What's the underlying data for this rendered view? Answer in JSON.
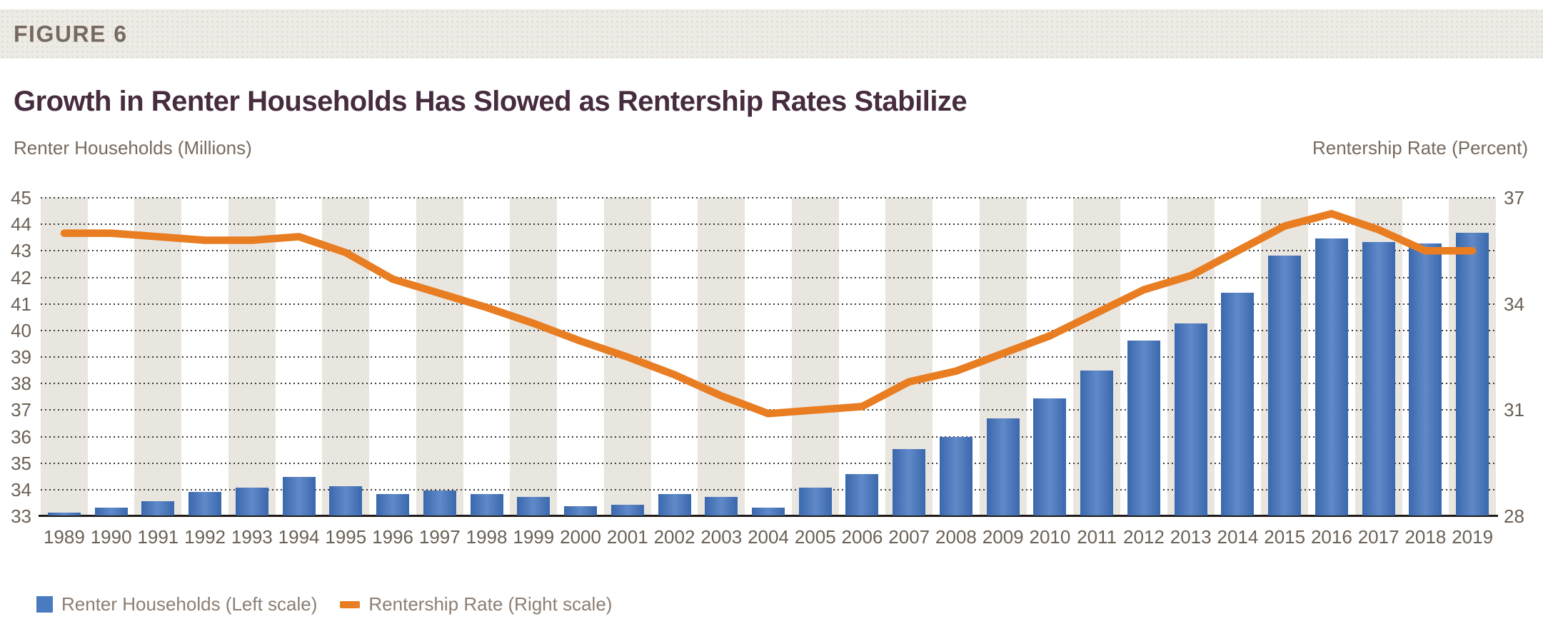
{
  "figure": {
    "label": "FIGURE 6",
    "title": "Growth in Renter Households Has Slowed as Rentership Rates Stabilize"
  },
  "chart_data": {
    "type": "bar+line combo",
    "left_axis_title": "Renter Households (Millions)",
    "right_axis_title": "Rentership Rate (Percent)",
    "left_axis": {
      "min": 33,
      "max": 45,
      "ticks": [
        45,
        44,
        43,
        42,
        41,
        40,
        39,
        38,
        37,
        36,
        35,
        34,
        33
      ]
    },
    "right_axis": {
      "min": 28,
      "max": 37,
      "ticks": [
        37,
        34,
        31,
        28
      ]
    },
    "categories": [
      "1989",
      "1990",
      "1991",
      "1992",
      "1993",
      "1994",
      "1995",
      "1996",
      "1997",
      "1998",
      "1999",
      "2000",
      "2001",
      "2002",
      "2003",
      "2004",
      "2005",
      "2006",
      "2007",
      "2008",
      "2009",
      "2010",
      "2011",
      "2012",
      "2013",
      "2014",
      "2015",
      "2016",
      "2017",
      "2018",
      "2019"
    ],
    "series": [
      {
        "name": "Renter Households (Left scale)",
        "type": "bar",
        "axis": "left",
        "color": "#4a7bbe",
        "values": [
          33.1,
          33.3,
          33.55,
          33.9,
          34.05,
          34.45,
          34.1,
          33.8,
          33.95,
          33.8,
          33.7,
          33.35,
          33.4,
          33.8,
          33.7,
          33.3,
          34.05,
          34.55,
          35.5,
          35.95,
          36.65,
          37.4,
          38.45,
          39.6,
          40.25,
          41.4,
          42.8,
          43.45,
          43.3,
          43.25,
          43.65
        ]
      },
      {
        "name": "Rentership Rate (Right scale)",
        "type": "line",
        "axis": "right",
        "color": "#e87d22",
        "values": [
          36.0,
          36.0,
          35.9,
          35.8,
          35.8,
          35.9,
          35.45,
          34.7,
          34.3,
          33.9,
          33.45,
          32.95,
          32.5,
          32.0,
          31.4,
          30.9,
          31.0,
          31.1,
          31.8,
          32.1,
          32.6,
          33.1,
          33.75,
          34.4,
          34.8,
          35.5,
          36.2,
          36.55,
          36.1,
          35.5,
          35.5
        ]
      }
    ],
    "grid": "dotted horizontal lines at each left-axis unit",
    "background_bands": "alternating vertical beige bands on odd years",
    "legend_position": "bottom-left"
  },
  "legend": {
    "items": [
      {
        "label": "Renter Households (Left scale)",
        "swatch": "blue-square"
      },
      {
        "label": "Rentership Rate (Right scale)",
        "swatch": "orange-dash"
      }
    ]
  },
  "colors": {
    "bar_edge": "#3a68ad",
    "bar_center": "#6089c8",
    "line_orange": "#e87d22",
    "band_beige": "#e9e6e0",
    "header_band": "#edebe5",
    "title_maroon": "#462c3e",
    "tick_text": "#6b6055",
    "axis_line": "#1f1b18"
  }
}
